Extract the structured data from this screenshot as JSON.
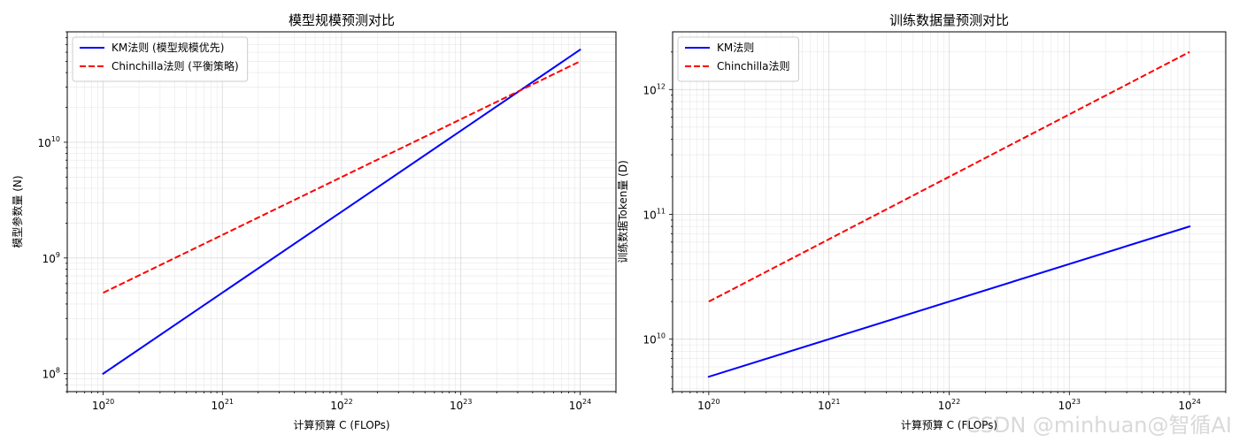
{
  "colors": {
    "km": "#0000ff",
    "chinchilla": "#ff0000",
    "grid": "#d9d9d9",
    "axis": "#000000",
    "background": "#ffffff"
  },
  "watermark": "CSDN @minhuan@智循AI",
  "chart_data": [
    {
      "type": "line",
      "title": "模型规模预测对比",
      "xlabel": "计算预算 C (FLOPs)",
      "ylabel": "模型参数量 (N)",
      "xscale": "log",
      "yscale": "log",
      "xlim": [
        5e+19,
        2e+24
      ],
      "ylim": [
        70000000.0,
        90000000000.0
      ],
      "x_ticks": [
        1e+20,
        1e+21,
        1e+22,
        1e+23,
        1e+24
      ],
      "x_tick_labels": [
        {
          "base": "10",
          "exp": "20"
        },
        {
          "base": "10",
          "exp": "21"
        },
        {
          "base": "10",
          "exp": "22"
        },
        {
          "base": "10",
          "exp": "23"
        },
        {
          "base": "10",
          "exp": "24"
        }
      ],
      "y_ticks": [
        100000000.0,
        1000000000.0,
        10000000000.0
      ],
      "y_tick_labels": [
        {
          "base": "10",
          "exp": "8"
        },
        {
          "base": "10",
          "exp": "9"
        },
        {
          "base": "10",
          "exp": "10"
        }
      ],
      "grid": true,
      "legend_position": "top-left",
      "series": [
        {
          "name": "KM法则 (模型规模优先)",
          "color": "#0000ff",
          "style": "solid",
          "x": [
            1e+20,
            1e+24
          ],
          "y": [
            100000000.0,
            63000000000.0
          ]
        },
        {
          "name": "Chinchilla法则 (平衡策略)",
          "color": "#ff0000",
          "style": "dashed",
          "x": [
            1e+20,
            1e+24
          ],
          "y": [
            500000000.0,
            50000000000.0
          ]
        }
      ]
    },
    {
      "type": "line",
      "title": "训练数据量预测对比",
      "xlabel": "计算预算 C (FLOPs)",
      "ylabel": "训练数据Token量 (D)",
      "xscale": "log",
      "yscale": "log",
      "xlim": [
        5e+19,
        2e+24
      ],
      "ylim": [
        3800000000.0,
        2900000000000.0
      ],
      "x_ticks": [
        1e+20,
        1e+21,
        1e+22,
        1e+23,
        1e+24
      ],
      "x_tick_labels": [
        {
          "base": "10",
          "exp": "20"
        },
        {
          "base": "10",
          "exp": "21"
        },
        {
          "base": "10",
          "exp": "22"
        },
        {
          "base": "10",
          "exp": "23"
        },
        {
          "base": "10",
          "exp": "24"
        }
      ],
      "y_ticks": [
        10000000000.0,
        100000000000.0,
        1000000000000.0
      ],
      "y_tick_labels": [
        {
          "base": "10",
          "exp": "10"
        },
        {
          "base": "10",
          "exp": "11"
        },
        {
          "base": "10",
          "exp": "12"
        }
      ],
      "grid": true,
      "legend_position": "top-left",
      "series": [
        {
          "name": "KM法则",
          "color": "#0000ff",
          "style": "solid",
          "x": [
            1e+20,
            1e+24
          ],
          "y": [
            5000000000.0,
            80000000000.0
          ]
        },
        {
          "name": "Chinchilla法则",
          "color": "#ff0000",
          "style": "dashed",
          "x": [
            1e+20,
            1e+24
          ],
          "y": [
            20000000000.0,
            2000000000000.0
          ]
        }
      ]
    }
  ]
}
